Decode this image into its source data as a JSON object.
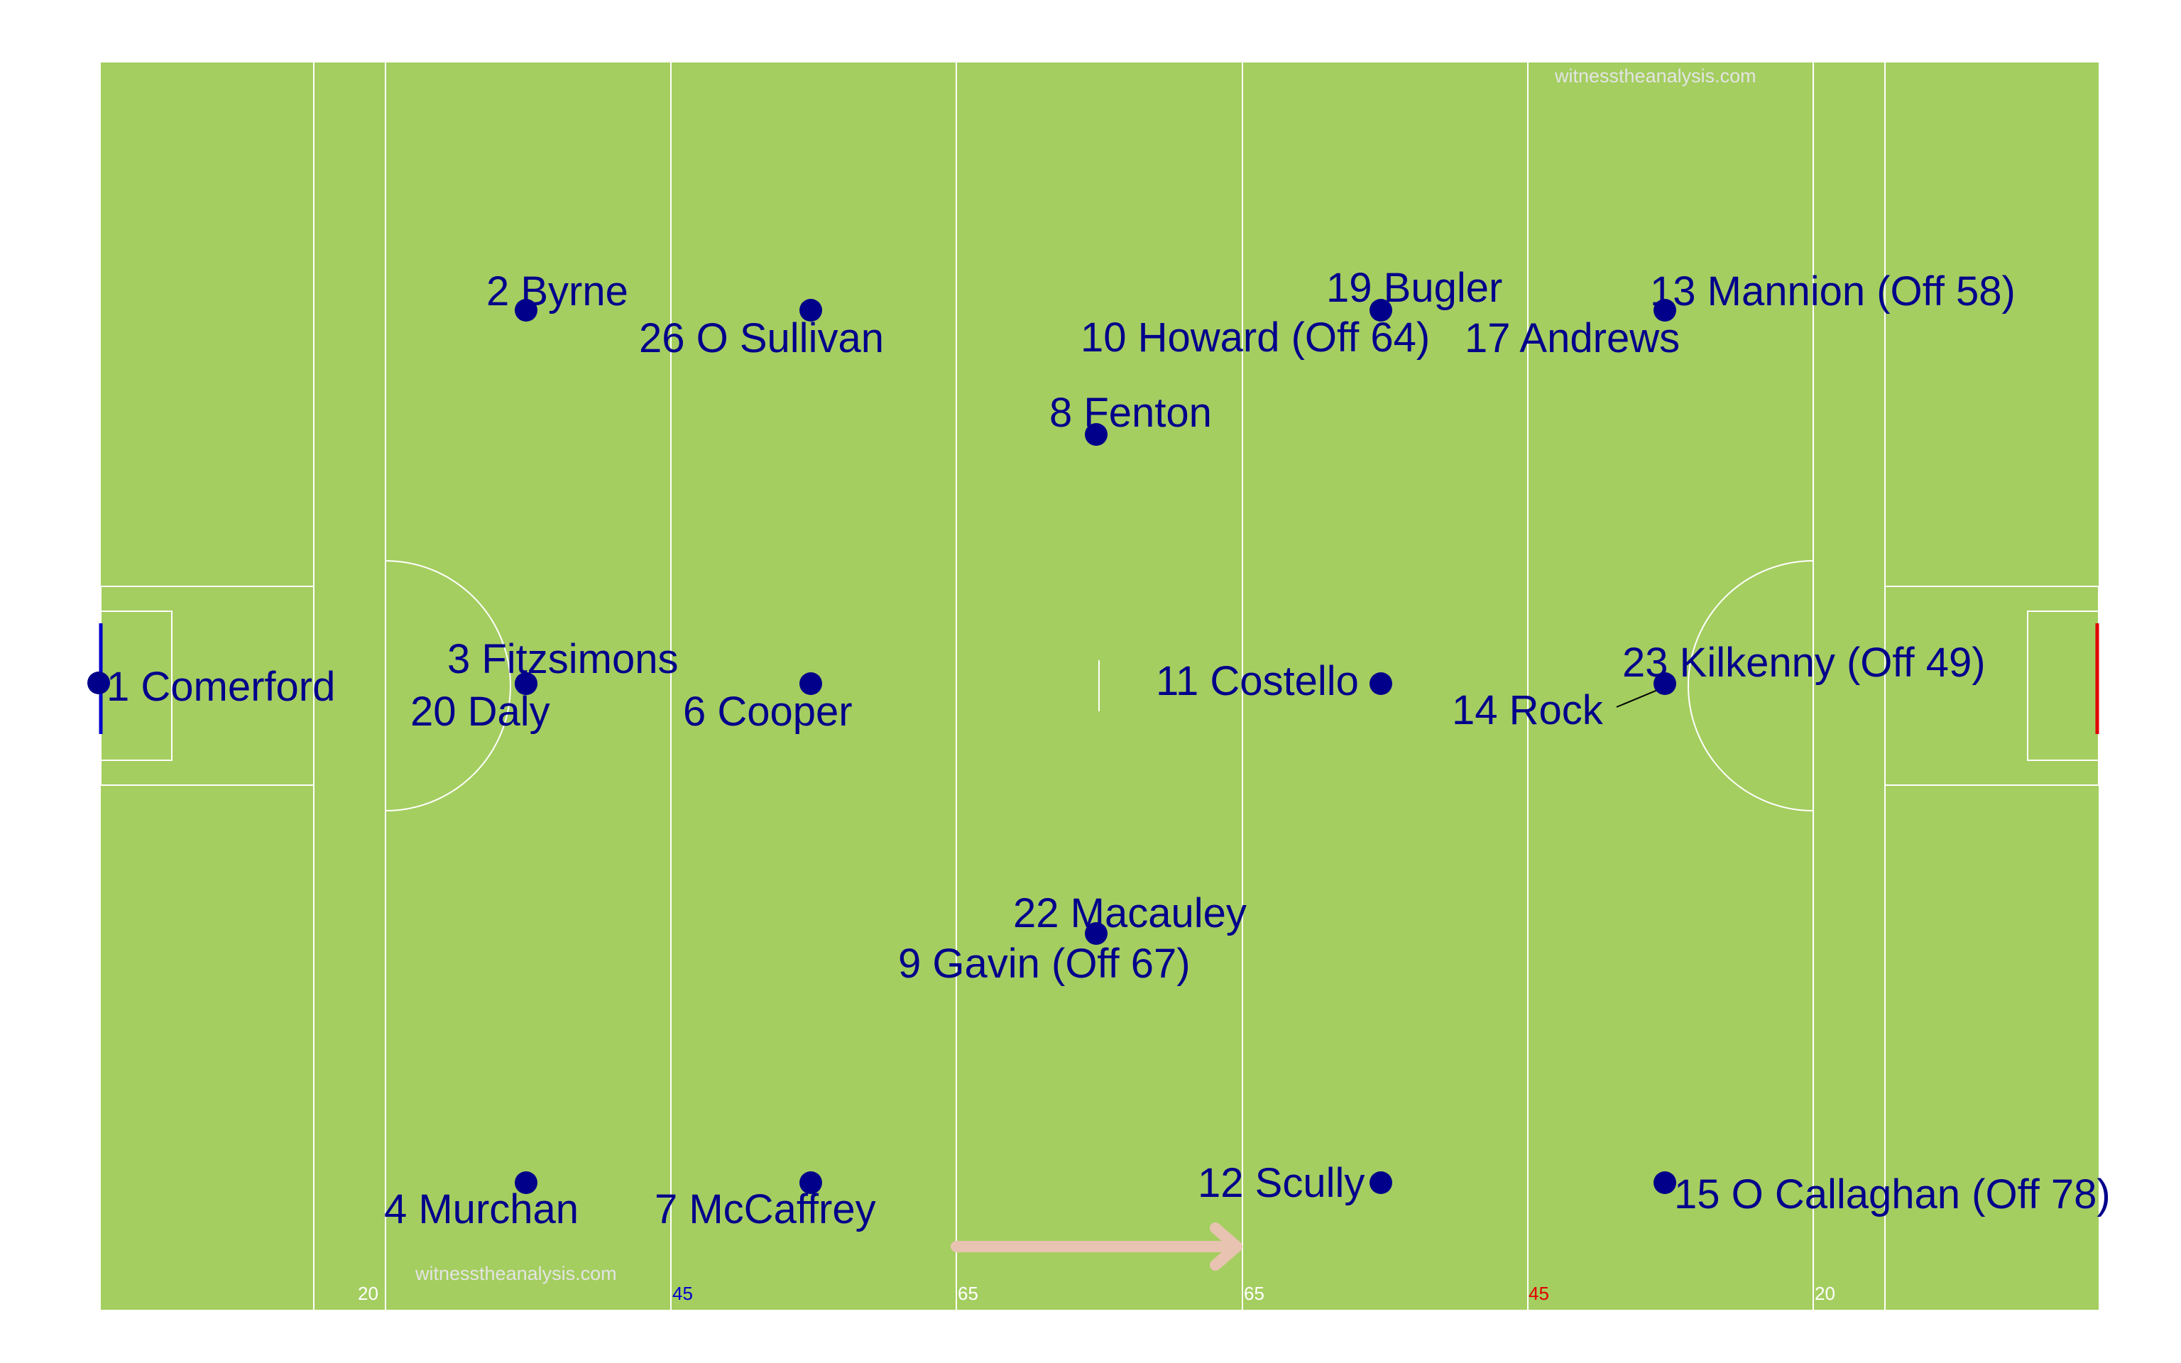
{
  "pitch": {
    "grass_color": "#a4ce60",
    "line_color": "#ffffff",
    "player_color": "#00008b",
    "arrow_color": "#e8c3b1",
    "left_goal_color": "#0000cd",
    "right_goal_color": "#e00000"
  },
  "watermarks": {
    "top": "witnesstheanalysis.com",
    "bottom": "witnesstheanalysis.com"
  },
  "line_labels": [
    {
      "text": "20",
      "color": "#ffffff"
    },
    {
      "text": "45",
      "color": "#0000cd"
    },
    {
      "text": "65",
      "color": "#ffffff"
    },
    {
      "text": "65",
      "color": "#ffffff"
    },
    {
      "text": "45",
      "color": "#e00000"
    },
    {
      "text": "20",
      "color": "#ffffff"
    }
  ],
  "players": [
    {
      "id": "p1",
      "label": "1 Comerford"
    },
    {
      "id": "p2",
      "label": "2 Byrne"
    },
    {
      "id": "p26",
      "label": "26 O Sullivan"
    },
    {
      "id": "p3",
      "label": "3 Fitzsimons"
    },
    {
      "id": "p20",
      "label": "20 Daly"
    },
    {
      "id": "p6",
      "label": "6 Cooper"
    },
    {
      "id": "p4",
      "label": "4 Murchan"
    },
    {
      "id": "p7",
      "label": "7 McCaffrey"
    },
    {
      "id": "p8",
      "label": "8 Fenton"
    },
    {
      "id": "p22",
      "label": "22 Macauley"
    },
    {
      "id": "p9",
      "label": "9 Gavin (Off 67)"
    },
    {
      "id": "p19",
      "label": "19 Bugler"
    },
    {
      "id": "p10",
      "label": "10 Howard (Off 64)"
    },
    {
      "id": "p11",
      "label": "11 Costello"
    },
    {
      "id": "p12",
      "label": "12 Scully"
    },
    {
      "id": "p13",
      "label": "13 Mannion (Off 58)"
    },
    {
      "id": "p17",
      "label": "17 Andrews"
    },
    {
      "id": "p23",
      "label": "23 Kilkenny (Off 49)"
    },
    {
      "id": "p14",
      "label": "14 Rock"
    },
    {
      "id": "p15",
      "label": "15 O Callaghan (Off 78)"
    }
  ]
}
